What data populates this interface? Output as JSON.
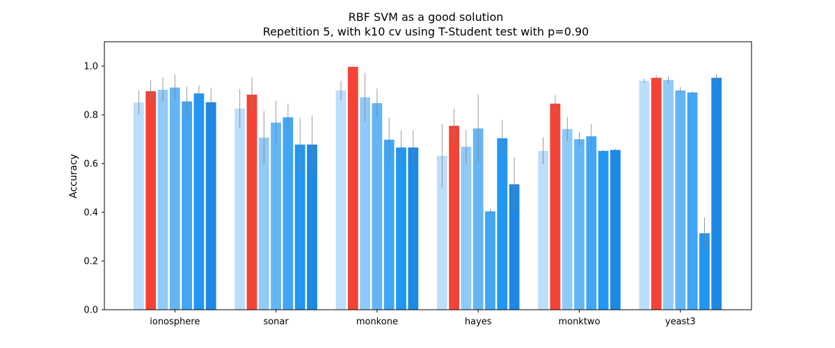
{
  "chart_data": {
    "type": "bar",
    "title": "RBF SVM as a good solution",
    "subtitle": "Repetition 5, with k10 cv using T-Student test with p=0.90",
    "xlabel": "",
    "ylabel": "Accuracy",
    "ylim": [
      0,
      1.1
    ],
    "yticks": [
      "0.0",
      "0.2",
      "0.4",
      "0.6",
      "0.8",
      "1.0"
    ],
    "grid": false,
    "categories": [
      "ionosphere",
      "sonar",
      "monkone",
      "hayes",
      "monktwo",
      "yeast3"
    ],
    "highlight_color": "#f44336",
    "series_colors": [
      "#bbdefb",
      "#f44336",
      "#90caf9",
      "#64b5f6",
      "#42a5f5",
      "#2196f3",
      "#1e88e5"
    ],
    "series": [
      {
        "values": [
          0.851,
          0.826,
          0.9,
          0.632,
          0.652,
          0.94
        ],
        "errors": [
          0.05,
          0.08,
          0.04,
          0.13,
          0.055,
          0.01
        ]
      },
      {
        "values": [
          0.897,
          0.883,
          0.997,
          0.755,
          0.846,
          0.952
        ],
        "errors": [
          0.045,
          0.07,
          0.005,
          0.07,
          0.035,
          0.01
        ]
      },
      {
        "values": [
          0.903,
          0.706,
          0.872,
          0.669,
          0.742,
          0.943
        ],
        "errors": [
          0.05,
          0.11,
          0.1,
          0.07,
          0.05,
          0.015
        ]
      },
      {
        "values": [
          0.912,
          0.768,
          0.848,
          0.744,
          0.7,
          0.9
        ],
        "errors": [
          0.055,
          0.09,
          0.06,
          0.14,
          0.03,
          0.015
        ]
      },
      {
        "values": [
          0.855,
          0.79,
          0.698,
          0.404,
          0.712,
          0.892
        ],
        "errors": [
          0.06,
          0.055,
          0.09,
          0.01,
          0.05,
          0.005
        ]
      },
      {
        "values": [
          0.888,
          0.678,
          0.666,
          0.704,
          0.652,
          0.314
        ],
        "errors": [
          0.035,
          0.11,
          0.07,
          0.075,
          0.005,
          0.065
        ]
      },
      {
        "values": [
          0.852,
          0.678,
          0.666,
          0.515,
          0.656,
          0.952
        ],
        "errors": [
          0.06,
          0.12,
          0.07,
          0.11,
          0.005,
          0.015
        ]
      }
    ]
  }
}
